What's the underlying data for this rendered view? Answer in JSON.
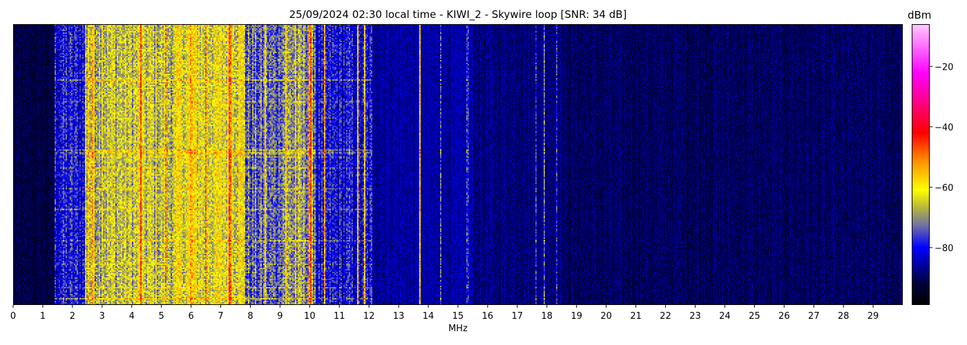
{
  "chart_data": {
    "type": "heatmap",
    "title": "25/09/2024 02:30 local time - KIWI_2 - Skywire loop [SNR: 34 dB]",
    "xlabel": "MHz",
    "ylabel": "",
    "xlim": [
      0,
      30
    ],
    "x_ticks": [
      "0",
      "1",
      "2",
      "3",
      "4",
      "5",
      "6",
      "7",
      "8",
      "9",
      "10",
      "11",
      "12",
      "13",
      "14",
      "15",
      "16",
      "17",
      "18",
      "19",
      "20",
      "21",
      "22",
      "23",
      "24",
      "25",
      "26",
      "27",
      "28",
      "29"
    ],
    "colorbar": {
      "label": "dBm",
      "range": [
        -99,
        -6
      ],
      "ticks": [
        "−20",
        "−40",
        "−60",
        "−80"
      ],
      "tick_values": [
        -20,
        -40,
        -60,
        -80
      ],
      "colormap": [
        {
          "value": -99,
          "color": "#000000"
        },
        {
          "value": -92,
          "color": "#00003c"
        },
        {
          "value": -86,
          "color": "#0000a0"
        },
        {
          "value": -80,
          "color": "#0000ff"
        },
        {
          "value": -73,
          "color": "#6e6ea8"
        },
        {
          "value": -67,
          "color": "#b4b43c"
        },
        {
          "value": -61,
          "color": "#ffff00"
        },
        {
          "value": -51,
          "color": "#ff8c00"
        },
        {
          "value": -42,
          "color": "#ff0000"
        },
        {
          "value": -31,
          "color": "#ff0090"
        },
        {
          "value": -22,
          "color": "#ff00ff"
        },
        {
          "value": -6,
          "color": "#ffc8ff"
        }
      ]
    },
    "background_profile_dBm": [
      {
        "from": 0,
        "to": 1.4,
        "level": -92
      },
      {
        "from": 1.4,
        "to": 2.4,
        "level": -80
      },
      {
        "from": 2.4,
        "to": 5.5,
        "level": -66
      },
      {
        "from": 5.5,
        "to": 7.8,
        "level": -63
      },
      {
        "from": 7.8,
        "to": 9.0,
        "level": -74
      },
      {
        "from": 9.0,
        "to": 10.2,
        "level": -70
      },
      {
        "from": 10.2,
        "to": 12.1,
        "level": -81
      },
      {
        "from": 12.1,
        "to": 15.5,
        "level": -86
      },
      {
        "from": 15.5,
        "to": 18.5,
        "level": -88
      },
      {
        "from": 18.5,
        "to": 30,
        "level": -90
      }
    ],
    "carriers_dBm": [
      {
        "freq": 2.55,
        "level": -55
      },
      {
        "freq": 2.7,
        "level": -58
      },
      {
        "freq": 3.0,
        "level": -60
      },
      {
        "freq": 4.3,
        "level": -44
      },
      {
        "freq": 5.2,
        "level": -56
      },
      {
        "freq": 6.0,
        "level": -55
      },
      {
        "freq": 6.5,
        "level": -52
      },
      {
        "freq": 7.3,
        "level": -45
      },
      {
        "freq": 7.6,
        "level": -56
      },
      {
        "freq": 8.5,
        "level": -55
      },
      {
        "freq": 9.2,
        "level": -56
      },
      {
        "freq": 9.5,
        "level": -58
      },
      {
        "freq": 10.0,
        "level": -50
      },
      {
        "freq": 10.5,
        "level": -58
      },
      {
        "freq": 11.6,
        "level": -60
      },
      {
        "freq": 11.85,
        "level": -60
      },
      {
        "freq": 13.7,
        "level": -58
      },
      {
        "freq": 14.4,
        "level": -74
      },
      {
        "freq": 15.3,
        "level": -78
      },
      {
        "freq": 17.6,
        "level": -76
      },
      {
        "freq": 17.9,
        "level": -72
      },
      {
        "freq": 18.3,
        "level": -78
      }
    ]
  }
}
